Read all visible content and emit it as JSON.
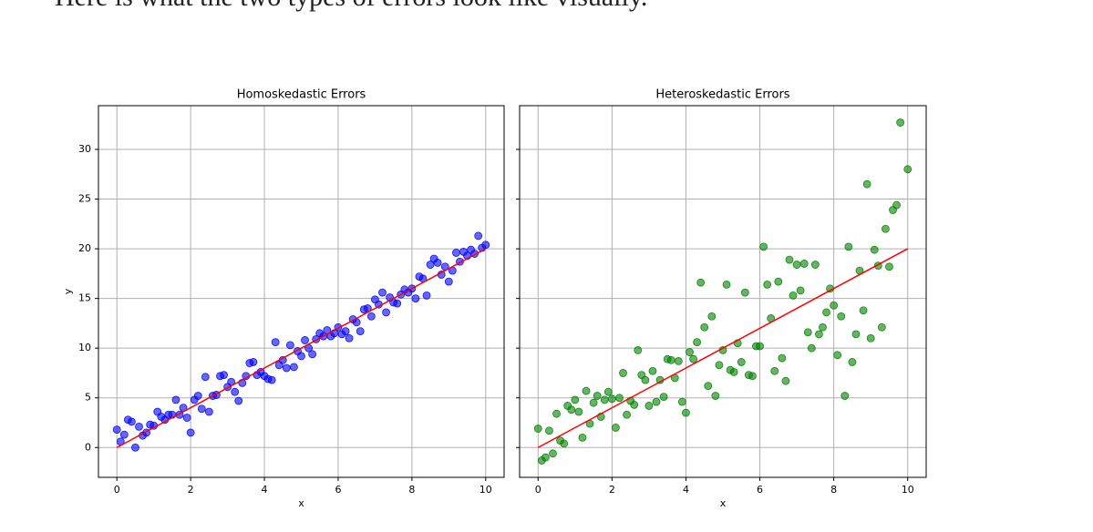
{
  "header": "Here is what the two types of errors look like visually.",
  "chart_data": [
    {
      "type": "scatter",
      "title": "Homoskedastic Errors",
      "xlabel": "x",
      "ylabel": "y",
      "xlim": [
        -0.5,
        10.5
      ],
      "ylim": [
        -3.0,
        34.4
      ],
      "xticks": [
        0,
        2,
        4,
        6,
        8,
        10
      ],
      "yticks": [
        0,
        5,
        10,
        15,
        20,
        25,
        30
      ],
      "ytick_labels": true,
      "grid": true,
      "series": [
        {
          "type": "scatter",
          "color": "#0000ff",
          "x": [
            0,
            0.1,
            0.2,
            0.3,
            0.4,
            0.5,
            0.6,
            0.7,
            0.8,
            0.9,
            1.0,
            1.1,
            1.2,
            1.3,
            1.4,
            1.5,
            1.6,
            1.7,
            1.8,
            1.9,
            2.0,
            2.1,
            2.2,
            2.3,
            2.4,
            2.5,
            2.6,
            2.7,
            2.8,
            2.9,
            3.0,
            3.1,
            3.2,
            3.3,
            3.4,
            3.5,
            3.6,
            3.7,
            3.8,
            3.9,
            4.0,
            4.1,
            4.2,
            4.3,
            4.4,
            4.5,
            4.6,
            4.7,
            4.8,
            4.9,
            5.0,
            5.1,
            5.2,
            5.3,
            5.4,
            5.5,
            5.6,
            5.7,
            5.8,
            5.9,
            6.0,
            6.1,
            6.2,
            6.3,
            6.4,
            6.5,
            6.6,
            6.7,
            6.8,
            6.9,
            7.0,
            7.1,
            7.2,
            7.3,
            7.4,
            7.5,
            7.6,
            7.7,
            7.8,
            7.9,
            8.0,
            8.1,
            8.2,
            8.3,
            8.4,
            8.5,
            8.6,
            8.7,
            8.8,
            8.9,
            9.0,
            9.1,
            9.2,
            9.3,
            9.4,
            9.5,
            9.6,
            9.7,
            9.8,
            9.9,
            10.0
          ],
          "values": [
            1.8,
            0.6,
            1.3,
            2.8,
            2.6,
            0,
            2.1,
            1.2,
            1.5,
            2.3,
            2.2,
            3.6,
            3.1,
            2.8,
            3.3,
            3.3,
            4.8,
            3.3,
            4.0,
            3.0,
            1.5,
            4.8,
            5.2,
            3.9,
            7.1,
            3.6,
            5.2,
            5.3,
            7.2,
            7.3,
            6.1,
            6.6,
            5.6,
            4.7,
            6.5,
            7.2,
            8.5,
            8.6,
            7.3,
            7.6,
            7.2,
            6.9,
            6.8,
            10.6,
            8.3,
            8.8,
            8.0,
            10.3,
            8.1,
            9.7,
            9.2,
            10.8,
            10.0,
            9.4,
            10.9,
            11.5,
            11.2,
            11.8,
            11.2,
            11.5,
            12.1,
            11.4,
            11.7,
            11.0,
            12.9,
            12.6,
            11.7,
            13.9,
            14.0,
            13.2,
            14.9,
            14.4,
            15.6,
            13.6,
            15.1,
            14.6,
            14.5,
            15.4,
            15.9,
            15.6,
            16.0,
            15.0,
            17.2,
            17.0,
            15.3,
            18.4,
            19.0,
            18.6,
            17.4,
            18.2,
            16.7,
            17.8,
            19.6,
            18.7,
            19.7,
            19.3,
            19.9,
            19.5,
            21.3,
            20.1,
            20.4
          ]
        },
        {
          "type": "line",
          "color": "#ff0000",
          "x": [
            0,
            10
          ],
          "values": [
            0,
            20
          ]
        }
      ]
    },
    {
      "type": "scatter",
      "title": "Heteroskedastic Errors",
      "xlabel": "x",
      "xlim": [
        -0.5,
        10.5
      ],
      "ylim": [
        -3.0,
        34.4
      ],
      "xticks": [
        0,
        2,
        4,
        6,
        8,
        10
      ],
      "yticks": [
        0,
        5,
        10,
        15,
        20,
        25,
        30
      ],
      "ytick_labels": false,
      "grid": true,
      "series": [
        {
          "type": "scatter",
          "color": "#008000",
          "x": [
            0,
            0.1,
            0.2,
            0.3,
            0.4,
            0.5,
            0.6,
            0.7,
            0.8,
            0.9,
            1.0,
            1.1,
            1.2,
            1.3,
            1.4,
            1.5,
            1.6,
            1.7,
            1.8,
            1.9,
            2.0,
            2.1,
            2.2,
            2.3,
            2.4,
            2.5,
            2.6,
            2.7,
            2.8,
            2.9,
            3.0,
            3.1,
            3.2,
            3.3,
            3.4,
            3.5,
            3.6,
            3.7,
            3.8,
            3.9,
            4.0,
            4.1,
            4.2,
            4.3,
            4.4,
            4.5,
            4.6,
            4.7,
            4.8,
            4.9,
            5.0,
            5.1,
            5.2,
            5.3,
            5.4,
            5.5,
            5.6,
            5.7,
            5.8,
            5.9,
            6.0,
            6.1,
            6.2,
            6.3,
            6.4,
            6.5,
            6.6,
            6.7,
            6.8,
            6.9,
            7.0,
            7.1,
            7.2,
            7.3,
            7.4,
            7.5,
            7.6,
            7.7,
            7.8,
            7.9,
            8.0,
            8.1,
            8.2,
            8.3,
            8.4,
            8.5,
            8.6,
            8.7,
            8.8,
            8.9,
            9.0,
            9.1,
            9.2,
            9.3,
            9.4,
            9.5,
            9.6,
            9.7,
            9.8,
            10.0
          ],
          "values": [
            1.9,
            -1.3,
            -1.0,
            1.7,
            -0.6,
            3.4,
            0.7,
            0.4,
            4.2,
            3.8,
            4.8,
            3.6,
            1.0,
            5.7,
            2.4,
            4.5,
            5.2,
            3.1,
            4.8,
            5.6,
            4.9,
            2.0,
            5.0,
            7.5,
            3.3,
            4.7,
            4.3,
            9.8,
            7.3,
            6.8,
            4.2,
            7.7,
            4.6,
            6.8,
            5.1,
            8.9,
            8.8,
            7.0,
            8.7,
            4.6,
            3.5,
            9.6,
            8.9,
            10.6,
            16.6,
            12.1,
            6.2,
            13.2,
            5.2,
            8.3,
            9.8,
            16.4,
            7.8,
            7.6,
            10.5,
            8.6,
            15.6,
            7.3,
            7.2,
            10.2,
            10.2,
            20.2,
            16.4,
            13.0,
            7.7,
            16.7,
            9.0,
            6.7,
            18.9,
            15.3,
            18.4,
            15.8,
            18.5,
            11.6,
            10.0,
            18.4,
            11.4,
            12.1,
            13.6,
            16.0,
            14.3,
            9.3,
            13.2,
            5.2,
            20.2,
            8.6,
            11.4,
            17.8,
            13.8,
            26.5,
            11.0,
            19.9,
            18.3,
            12.1,
            22.0,
            18.2,
            23.9,
            24.4,
            32.7,
            28.0
          ]
        },
        {
          "type": "line",
          "color": "#ff0000",
          "x": [
            0,
            10
          ],
          "values": [
            0,
            20
          ]
        }
      ]
    }
  ]
}
